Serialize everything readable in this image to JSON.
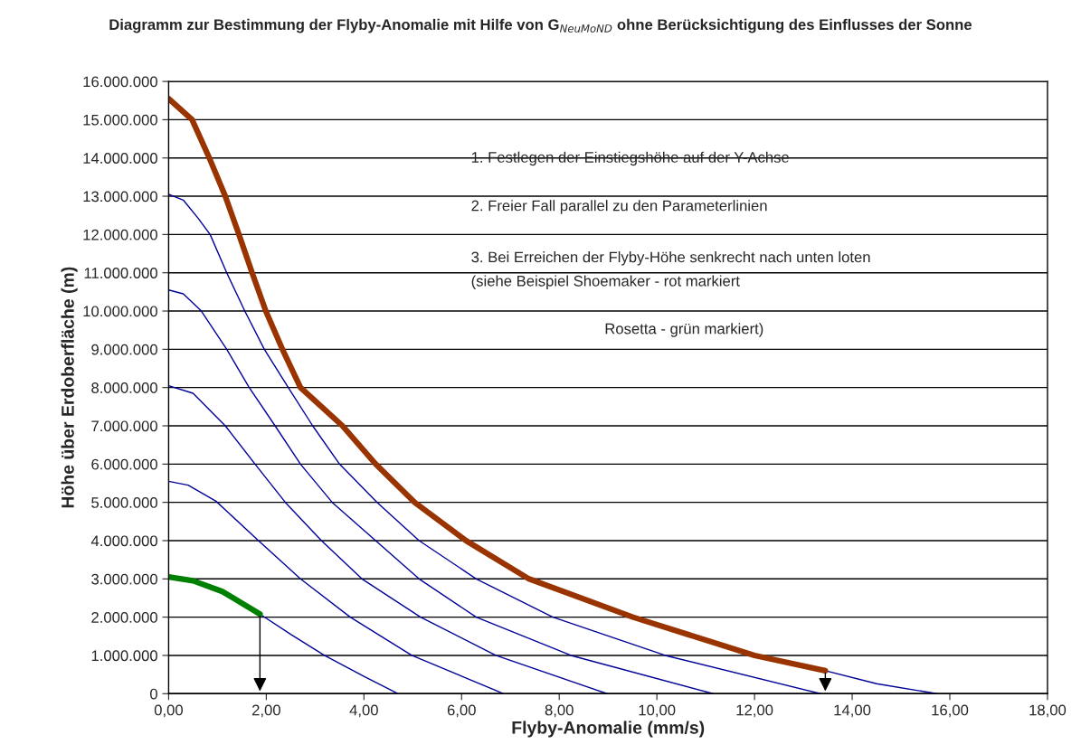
{
  "chart_data": {
    "type": "line",
    "title": "Diagramm zur Bestimmung der Flyby-Anomalie mit Hilfe von G$_{NeuMoND}$ ohne Berücksichtigung des Einflusses der Sonne",
    "xlabel": "Flyby-Anomalie (mm/s)",
    "ylabel": "Höhe über Erdoberfläche (m)",
    "annotations": [
      "1. Festlegen der Einstiegshöhe auf der Y-Achse",
      "2. Freier Fall parallel zu den Parameterlinien",
      "3. Bei Erreichen der Flyby-Höhe senkrecht nach unten loten",
      "(siehe Beispiel Shoemaker - rot markiert",
      "Rosetta - grün markiert)"
    ],
    "series": [
      {
        "color": "#000099",
        "x": [
          1.87,
          2.5,
          3.19,
          4.0,
          4.7
        ],
        "values": [
          2080000,
          1550000,
          1000000,
          450000,
          0
        ]
      },
      {
        "color": "#000099",
        "x": [
          0,
          0.4,
          0.97,
          1.84,
          2.7,
          3.72,
          4.98,
          6.86
        ],
        "values": [
          5550000,
          5450000,
          5030000,
          4000000,
          3000000,
          2000000,
          1000000,
          0
        ]
      },
      {
        "color": "#000099",
        "x": [
          0,
          0.5,
          1.16,
          1.77,
          2.39,
          3.13,
          3.96,
          5.16,
          6.7,
          8.98
        ],
        "values": [
          8050000,
          7850000,
          7000000,
          6000000,
          5000000,
          4000000,
          3000000,
          2000000,
          1000000,
          0
        ]
      },
      {
        "color": "#000099",
        "x": [
          0,
          0.3,
          0.67,
          1.19,
          1.65,
          2.18,
          2.7,
          3.35,
          4.24,
          5.13,
          6.3,
          8.24,
          11.15
        ],
        "values": [
          10550000,
          10450000,
          10000000,
          9000000,
          8000000,
          7000000,
          6000000,
          5000000,
          4000000,
          3000000,
          2000000,
          1000000,
          0
        ]
      },
      {
        "color": "#000099",
        "x": [
          0,
          0.3,
          0.6,
          0.85,
          1.19,
          1.56,
          1.96,
          2.45,
          2.95,
          3.5,
          4.27,
          5.13,
          6.3,
          7.87,
          10.17,
          13.35
        ],
        "values": [
          13050000,
          12900000,
          12430000,
          12000000,
          11000000,
          10000000,
          9000000,
          8000000,
          7000000,
          6000000,
          5000000,
          4000000,
          3000000,
          2000000,
          1000000,
          0
        ]
      },
      {
        "color": "#000099",
        "x": [
          13.45,
          14.5,
          15.73
        ],
        "values": [
          600000,
          260000,
          0
        ]
      },
      {
        "color": "#008000",
        "x": [
          0,
          0.5,
          1.1,
          1.87
        ],
        "values": [
          3050000,
          2950000,
          2670000,
          2080000
        ]
      },
      {
        "color": "#993300",
        "x": [
          0,
          0.48,
          0.85,
          1.16,
          1.44,
          1.71,
          1.99,
          2.33,
          2.7,
          3.56,
          4.24,
          5.04,
          6.09,
          7.38,
          9.51,
          12.0,
          13.45
        ],
        "values": [
          15550000,
          15000000,
          13950000,
          13000000,
          12000000,
          11000000,
          10000000,
          9000000,
          8000000,
          7000000,
          6000000,
          5000000,
          4000000,
          3000000,
          2000000,
          1000000,
          600000
        ]
      }
    ],
    "xlim": [
      0,
      18
    ],
    "xticks": [
      {
        "value": 0,
        "label": "0,00"
      },
      {
        "value": 2,
        "label": "2,00"
      },
      {
        "value": 4,
        "label": "4,00"
      },
      {
        "value": 6,
        "label": "6,00"
      },
      {
        "value": 8,
        "label": "8,00"
      },
      {
        "value": 10,
        "label": "10,00"
      },
      {
        "value": 12,
        "label": "12,00"
      },
      {
        "value": 14,
        "label": "14,00"
      },
      {
        "value": 16,
        "label": "16,00"
      },
      {
        "value": 18,
        "label": "18,00"
      }
    ],
    "ylim": [
      0,
      16000000
    ],
    "yticks": [
      {
        "value": 0,
        "label": "0"
      },
      {
        "value": 1000000,
        "label": "1.000.000"
      },
      {
        "value": 2000000,
        "label": "2.000.000"
      },
      {
        "value": 3000000,
        "label": "3.000.000"
      },
      {
        "value": 4000000,
        "label": "4.000.000"
      },
      {
        "value": 5000000,
        "label": "5.000.000"
      },
      {
        "value": 6000000,
        "label": "6.000.000"
      },
      {
        "value": 7000000,
        "label": "7.000.000"
      },
      {
        "value": 8000000,
        "label": "8.000.000"
      },
      {
        "value": 9000000,
        "label": "9.000.000"
      },
      {
        "value": 10000000,
        "label": "10.000.000"
      },
      {
        "value": 11000000,
        "label": "11.000.000"
      },
      {
        "value": 12000000,
        "label": "12.000.000"
      },
      {
        "value": 13000000,
        "label": "13.000.000"
      },
      {
        "value": 14000000,
        "label": "14.000.000"
      },
      {
        "value": 15000000,
        "label": "15.000.000"
      },
      {
        "value": 16000000,
        "label": "16.000.000"
      }
    ],
    "grid": "y",
    "legend": false,
    "marker": "none",
    "line_style": "solid"
  }
}
